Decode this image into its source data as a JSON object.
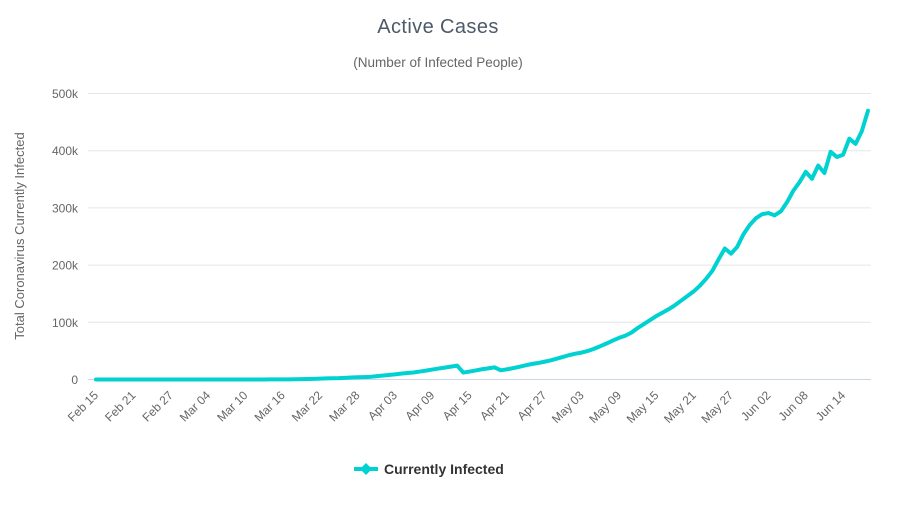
{
  "chart": {
    "title": "Active Cases",
    "subtitle": "(Number of Infected People)",
    "y_axis_title": "Total Coronavirus Currently Infected",
    "legend_label": "Currently Infected",
    "colors": {
      "line": "#00d1d1",
      "title_text": "#4d5a68",
      "subtitle_text": "#666666",
      "axis_label_text": "#666666",
      "gridline": "#e6e6e6",
      "axis_line": "#ccd6eb",
      "legend_text": "#333333",
      "background": "#ffffff"
    }
  },
  "chart_data": {
    "type": "line",
    "title": "Active Cases",
    "subtitle": "(Number of Infected People)",
    "xlabel": "",
    "ylabel": "Total Coronavirus Currently Infected",
    "ylim": [
      0,
      500000
    ],
    "y_ticks": [
      0,
      100000,
      200000,
      300000,
      400000,
      500000
    ],
    "y_tick_labels": [
      "0",
      "100k",
      "200k",
      "300k",
      "400k",
      "500k"
    ],
    "x_tick_labels": [
      "Feb 15",
      "Feb 21",
      "Feb 27",
      "Mar 04",
      "Mar 10",
      "Mar 16",
      "Mar 22",
      "Mar 28",
      "Apr 03",
      "Apr 09",
      "Apr 15",
      "Apr 21",
      "Apr 27",
      "May 03",
      "May 09",
      "May 15",
      "May 21",
      "May 27",
      "Jun 02",
      "Jun 08",
      "Jun 14"
    ],
    "x_tick_interval_days": 6,
    "grid": "horizontal",
    "legend_position": "bottom-center",
    "x": [
      "Feb 15",
      "Feb 16",
      "Feb 17",
      "Feb 18",
      "Feb 19",
      "Feb 20",
      "Feb 21",
      "Feb 22",
      "Feb 23",
      "Feb 24",
      "Feb 25",
      "Feb 26",
      "Feb 27",
      "Feb 28",
      "Feb 29",
      "Mar 01",
      "Mar 02",
      "Mar 03",
      "Mar 04",
      "Mar 05",
      "Mar 06",
      "Mar 07",
      "Mar 08",
      "Mar 09",
      "Mar 10",
      "Mar 11",
      "Mar 12",
      "Mar 13",
      "Mar 14",
      "Mar 15",
      "Mar 16",
      "Mar 17",
      "Mar 18",
      "Mar 19",
      "Mar 20",
      "Mar 21",
      "Mar 22",
      "Mar 23",
      "Mar 24",
      "Mar 25",
      "Mar 26",
      "Mar 27",
      "Mar 28",
      "Mar 29",
      "Mar 30",
      "Mar 31",
      "Apr 01",
      "Apr 02",
      "Apr 03",
      "Apr 04",
      "Apr 05",
      "Apr 06",
      "Apr 07",
      "Apr 08",
      "Apr 09",
      "Apr 10",
      "Apr 11",
      "Apr 12",
      "Apr 13",
      "Apr 14",
      "Apr 15",
      "Apr 16",
      "Apr 17",
      "Apr 18",
      "Apr 19",
      "Apr 20",
      "Apr 21",
      "Apr 22",
      "Apr 23",
      "Apr 24",
      "Apr 25",
      "Apr 26",
      "Apr 27",
      "Apr 28",
      "Apr 29",
      "Apr 30",
      "May 01",
      "May 02",
      "May 03",
      "May 04",
      "May 05",
      "May 06",
      "May 07",
      "May 08",
      "May 09",
      "May 10",
      "May 11",
      "May 12",
      "May 13",
      "May 14",
      "May 15",
      "May 16",
      "May 17",
      "May 18",
      "May 19",
      "May 20",
      "May 21",
      "May 22",
      "May 23",
      "May 24",
      "May 25",
      "May 26",
      "May 27",
      "May 28",
      "May 29",
      "May 30",
      "May 31",
      "Jun 01",
      "Jun 02",
      "Jun 03",
      "Jun 04",
      "Jun 05",
      "Jun 06",
      "Jun 07",
      "Jun 08",
      "Jun 09",
      "Jun 10",
      "Jun 11",
      "Jun 12",
      "Jun 13",
      "Jun 14",
      "Jun 15",
      "Jun 16",
      "Jun 17",
      "Jun 18"
    ],
    "series": [
      {
        "name": "Currently Infected",
        "color": "#00d1d1",
        "values": [
          0,
          0,
          0,
          0,
          0,
          0,
          0,
          0,
          0,
          0,
          0,
          1,
          1,
          1,
          2,
          2,
          2,
          2,
          4,
          8,
          13,
          19,
          25,
          25,
          34,
          52,
          77,
          98,
          121,
          200,
          234,
          291,
          372,
          621,
          904,
          1128,
          1546,
          1891,
          2201,
          2433,
          2915,
          3417,
          3904,
          4256,
          4579,
          5717,
          6743,
          7787,
          8878,
          10278,
          11281,
          12260,
          13860,
          15510,
          17340,
          19100,
          20700,
          22500,
          24300,
          12100,
          13900,
          15900,
          17900,
          19400,
          21200,
          16100,
          17800,
          19900,
          22200,
          24800,
          27100,
          28800,
          31000,
          33400,
          36400,
          39500,
          42600,
          45100,
          47000,
          49900,
          53800,
          58200,
          62900,
          68100,
          72700,
          76500,
          82000,
          90000,
          97000,
          104000,
          111000,
          117000,
          123000,
          130000,
          138000,
          146000,
          154000,
          164000,
          176000,
          190000,
          210000,
          229000,
          220000,
          232000,
          254000,
          270000,
          282000,
          289000,
          291000,
          287000,
          294000,
          310000,
          330000,
          345000,
          363000,
          351000,
          374000,
          361000,
          398000,
          389000,
          393000,
          421000,
          412000,
          434000,
          470000
        ]
      }
    ]
  }
}
